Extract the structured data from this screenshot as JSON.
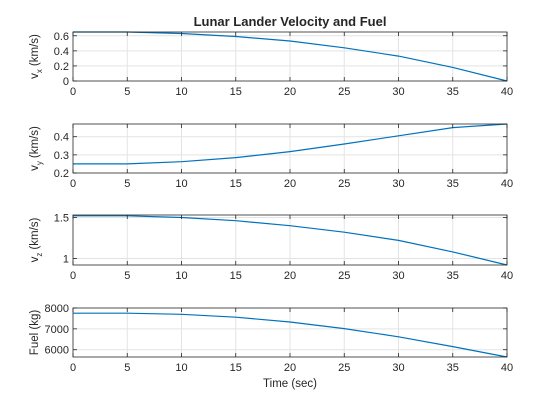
{
  "title": "Lunar Lander Velocity and Fuel",
  "xlabel": "Time (sec)",
  "chart_data": [
    {
      "type": "line",
      "ylabel": "v",
      "ylabel_sub": "x",
      "ylabel_unit": "(km/s)",
      "x": [
        0,
        5,
        10,
        15,
        20,
        25,
        30,
        35,
        40
      ],
      "series": [
        {
          "values": [
            0.65,
            0.65,
            0.63,
            0.59,
            0.53,
            0.44,
            0.33,
            0.18,
            0.0
          ]
        }
      ],
      "xlim": [
        0,
        40
      ],
      "ylim": [
        0,
        0.65
      ],
      "xticks": [
        0,
        5,
        10,
        15,
        20,
        25,
        30,
        35,
        40
      ],
      "yticks": [
        0,
        0.2,
        0.4,
        0.6
      ],
      "ytick_labels": [
        "0",
        "0.2",
        "0.4",
        "0.6"
      ],
      "grid": true
    },
    {
      "type": "line",
      "ylabel": "v",
      "ylabel_sub": "y",
      "ylabel_unit": "(km/s)",
      "x": [
        0,
        5,
        10,
        15,
        20,
        25,
        30,
        35,
        40
      ],
      "series": [
        {
          "values": [
            0.25,
            0.25,
            0.262,
            0.285,
            0.318,
            0.36,
            0.405,
            0.45,
            0.47
          ]
        }
      ],
      "xlim": [
        0,
        40
      ],
      "ylim": [
        0.2,
        0.47
      ],
      "xticks": [
        0,
        5,
        10,
        15,
        20,
        25,
        30,
        35,
        40
      ],
      "yticks": [
        0.2,
        0.3,
        0.4
      ],
      "ytick_labels": [
        "0.2",
        "0.3",
        "0.4"
      ],
      "grid": true
    },
    {
      "type": "line",
      "ylabel": "v",
      "ylabel_sub": "z",
      "ylabel_unit": "(km/s)",
      "x": [
        0,
        5,
        10,
        15,
        20,
        25,
        30,
        35,
        40
      ],
      "series": [
        {
          "values": [
            1.52,
            1.52,
            1.5,
            1.46,
            1.4,
            1.32,
            1.22,
            1.08,
            0.92
          ]
        }
      ],
      "xlim": [
        0,
        40
      ],
      "ylim": [
        0.92,
        1.53
      ],
      "xticks": [
        0,
        5,
        10,
        15,
        20,
        25,
        30,
        35,
        40
      ],
      "yticks": [
        1,
        1.5
      ],
      "ytick_labels": [
        "1",
        "1.5"
      ],
      "grid": true
    },
    {
      "type": "line",
      "ylabel": "Fuel (kg)",
      "x": [
        0,
        5,
        10,
        15,
        20,
        25,
        30,
        35,
        40
      ],
      "series": [
        {
          "values": [
            7750,
            7750,
            7700,
            7560,
            7330,
            7010,
            6620,
            6150,
            5650
          ]
        }
      ],
      "xlim": [
        0,
        40
      ],
      "ylim": [
        5650,
        8000
      ],
      "xticks": [
        0,
        5,
        10,
        15,
        20,
        25,
        30,
        35,
        40
      ],
      "yticks": [
        6000,
        7000,
        8000
      ],
      "ytick_labels": [
        "6000",
        "7000",
        "8000"
      ],
      "grid": true
    }
  ],
  "colors": {
    "line": "#0072bd",
    "axis": "#262626",
    "grid": "#e3e3e3"
  }
}
